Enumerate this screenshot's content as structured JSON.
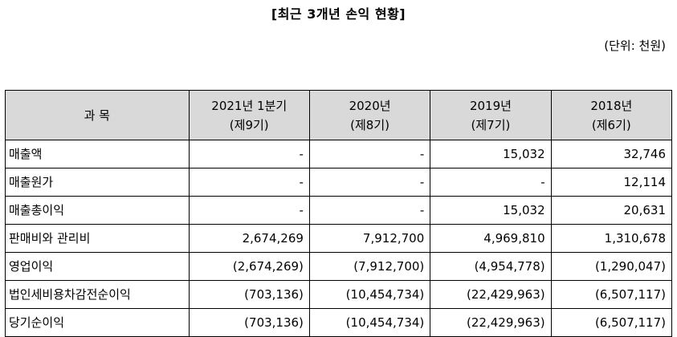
{
  "title": "[최근 3개년 손익 현황]",
  "unit": "(단위: 천원)",
  "table": {
    "header": {
      "label": "과  목",
      "columns": [
        {
          "line1": "2021년 1분기",
          "line2": "(제9기)"
        },
        {
          "line1": "2020년",
          "line2": "(제8기)"
        },
        {
          "line1": "2019년",
          "line2": "(제7기)"
        },
        {
          "line1": "2018년",
          "line2": "(제6기)"
        }
      ]
    },
    "rows": [
      {
        "label": "매출액",
        "values": [
          "-",
          "-",
          "15,032",
          "32,746"
        ]
      },
      {
        "label": "매출원가",
        "values": [
          "-",
          "-",
          "-",
          "12,114"
        ]
      },
      {
        "label": "매출총이익",
        "values": [
          "-",
          "-",
          "15,032",
          "20,631"
        ]
      },
      {
        "label": "판매비와 관리비",
        "values": [
          "2,674,269",
          "7,912,700",
          "4,969,810",
          "1,310,678"
        ]
      },
      {
        "label": "영업이익",
        "values": [
          "(2,674,269)",
          "(7,912,700)",
          "(4,954,778)",
          "(1,290,047)"
        ]
      },
      {
        "label": "법인세비용차감전순이익",
        "values": [
          "(703,136)",
          "(10,454,734)",
          "(22,429,963)",
          "(6,507,117)"
        ]
      },
      {
        "label": "당기순이익",
        "values": [
          "(703,136)",
          "(10,454,734)",
          "(22,429,963)",
          "(6,507,117)"
        ]
      }
    ]
  }
}
